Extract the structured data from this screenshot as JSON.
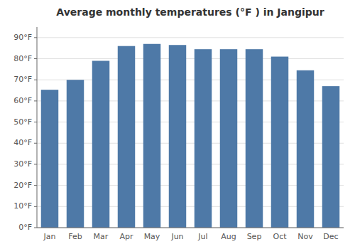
{
  "chart_data": {
    "type": "bar",
    "title": "Average monthly temperatures (°F ) in Jangipur",
    "categories": [
      "Jan",
      "Feb",
      "Mar",
      "Apr",
      "May",
      "Jun",
      "Jul",
      "Aug",
      "Sep",
      "Oct",
      "Nov",
      "Dec"
    ],
    "values": [
      65.3,
      70.0,
      79.0,
      86.0,
      87.0,
      86.5,
      84.5,
      84.5,
      84.5,
      81.0,
      74.5,
      67.0
    ],
    "ylim": [
      0,
      95
    ],
    "yticks": [
      {
        "value": 0,
        "label": "0°F"
      },
      {
        "value": 10,
        "label": "10°F"
      },
      {
        "value": 20,
        "label": "20°F"
      },
      {
        "value": 30,
        "label": "30°F"
      },
      {
        "value": 40,
        "label": "40°F"
      },
      {
        "value": 50,
        "label": "50°F"
      },
      {
        "value": 60,
        "label": "60°F"
      },
      {
        "value": 70,
        "label": "70°F"
      },
      {
        "value": 80,
        "label": "80°F"
      },
      {
        "value": 90,
        "label": "90°F"
      }
    ],
    "grid": true
  }
}
